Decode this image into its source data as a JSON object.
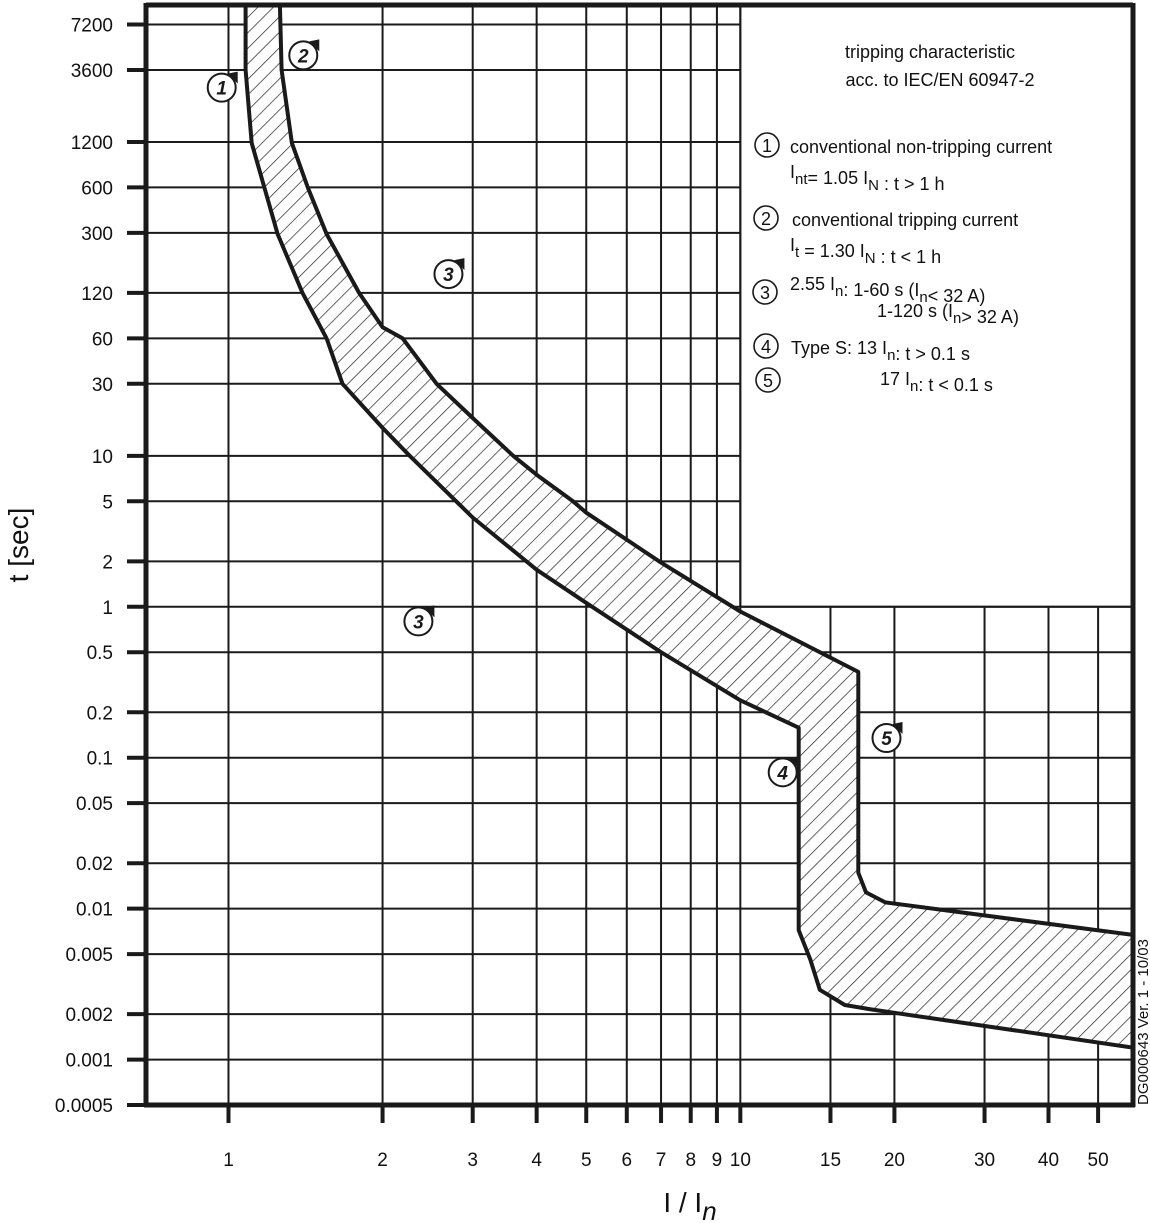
{
  "chart_data": {
    "type": "area",
    "title": "tripping characteristic",
    "subtitle": "acc. to IEC/EN 60947-2",
    "xlabel": {
      "main": "I / I",
      "sub": "n"
    },
    "ylabel": "t [sec]",
    "x_scale": "log",
    "y_scale": "log",
    "xlim": [
      0.69,
      58.5
    ],
    "ylim": [
      0.0005,
      9700
    ],
    "grid": true,
    "x_ticks": [
      1,
      2,
      3,
      4,
      5,
      6,
      7,
      8,
      9,
      10,
      15,
      20,
      30,
      40,
      50
    ],
    "x_tick_labels": [
      "1",
      "2",
      "3",
      "4",
      "5",
      "6",
      "7",
      "8",
      "9",
      "10",
      "15",
      "20",
      "30",
      "40",
      "50"
    ],
    "y_ticks": [
      7200,
      3600,
      1200,
      600,
      300,
      120,
      60,
      30,
      10,
      5,
      2,
      1,
      0.5,
      0.2,
      0.1,
      0.05,
      0.02,
      0.01,
      0.005,
      0.002,
      0.001,
      0.0005
    ],
    "y_tick_labels": [
      "7200",
      "3600",
      "1200",
      "600",
      "300",
      "120",
      "60",
      "30",
      "10",
      "5",
      "2",
      "1",
      "0.5",
      "0.2",
      "0.1",
      "0.05",
      "0.02",
      "0.01",
      "0.005",
      "0.002",
      "0.001",
      "0.0005"
    ],
    "band": {
      "fill": "hatched",
      "upper": [
        [
          1.26,
          9700
        ],
        [
          1.27,
          3600
        ],
        [
          1.33,
          1180
        ],
        [
          1.43,
          595
        ],
        [
          1.555,
          295
        ],
        [
          1.8,
          120
        ],
        [
          2,
          71
        ],
        [
          2.19,
          60
        ],
        [
          2.55,
          30
        ],
        [
          3,
          17.8
        ],
        [
          3.6,
          10
        ],
        [
          4,
          7.5
        ],
        [
          4.71,
          5
        ],
        [
          5,
          4.2
        ],
        [
          7,
          1.96
        ],
        [
          10,
          0.93
        ],
        [
          17,
          0.37
        ],
        [
          17,
          0.0173
        ],
        [
          17.6,
          0.0128
        ],
        [
          19.2,
          0.011
        ],
        [
          58.5,
          0.0067
        ]
      ],
      "lower": [
        [
          1.08,
          9700
        ],
        [
          1.08,
          3600
        ],
        [
          1.11,
          1180
        ],
        [
          1.176,
          595
        ],
        [
          1.247,
          295
        ],
        [
          1.395,
          120
        ],
        [
          1.555,
          60
        ],
        [
          1.67,
          30
        ],
        [
          2,
          15.3
        ],
        [
          2.26,
          10
        ],
        [
          3,
          3.9
        ],
        [
          4,
          1.76
        ],
        [
          5,
          1.06
        ],
        [
          7,
          0.5
        ],
        [
          10,
          0.24
        ],
        [
          13,
          0.158
        ],
        [
          13,
          0.0072
        ],
        [
          13.7,
          0.0046
        ],
        [
          14.3,
          0.0029
        ],
        [
          16,
          0.0023
        ],
        [
          18,
          0.00215
        ],
        [
          58.5,
          0.0012
        ]
      ]
    },
    "markers": [
      {
        "label": "1",
        "x": 0.97,
        "y": 2750
      },
      {
        "label": "2",
        "x": 1.4,
        "y": 4500
      },
      {
        "label": "3",
        "x": 2.69,
        "y": 160
      },
      {
        "label": "3",
        "x": 2.35,
        "y": 0.8
      },
      {
        "label": "4",
        "x": 12.1,
        "y": 0.08
      },
      {
        "label": "5",
        "x": 19.3,
        "y": 0.135
      }
    ],
    "legend": [
      {
        "num": "1",
        "lines": [
          [
            {
              "t": "conventional non-tripping current"
            }
          ],
          [
            {
              "t": "I"
            },
            {
              "sub": "nt"
            },
            {
              "t": "= 1.05 I"
            },
            {
              "sub": "N"
            },
            {
              "t": " : t > 1 h"
            }
          ]
        ]
      },
      {
        "num": "2",
        "lines": [
          [
            {
              "t": "conventional tripping current"
            }
          ],
          [
            {
              "t": "I"
            },
            {
              "sub": "t"
            },
            {
              "t": " = 1.30 I"
            },
            {
              "sub": "N"
            },
            {
              "t": " : t < 1 h"
            }
          ]
        ]
      },
      {
        "num": "3",
        "lines": [
          [
            {
              "t": "2.55 I"
            },
            {
              "sub": "n"
            },
            {
              "t": ":  1-60 s (I"
            },
            {
              "sub": "n"
            },
            {
              "t": "< 32 A)"
            }
          ],
          [
            {
              "t": "1-120 s (I"
            },
            {
              "sub": "n"
            },
            {
              "t": "> 32 A)"
            }
          ]
        ]
      },
      {
        "num": "4",
        "lines": [
          [
            {
              "t": "Type S:  13 I"
            },
            {
              "sub": "n"
            },
            {
              "t": ": t > 0.1 s"
            }
          ]
        ]
      },
      {
        "num": "5",
        "lines": [
          [
            {
              "t": "17 I"
            },
            {
              "sub": "n"
            },
            {
              "t": ": t < 0.1 s"
            }
          ]
        ]
      }
    ],
    "document_id": "DG000643  Ver. 1 - 10/03",
    "colors": {
      "ink": "#1a1a1a",
      "background": "#ffffff"
    }
  }
}
